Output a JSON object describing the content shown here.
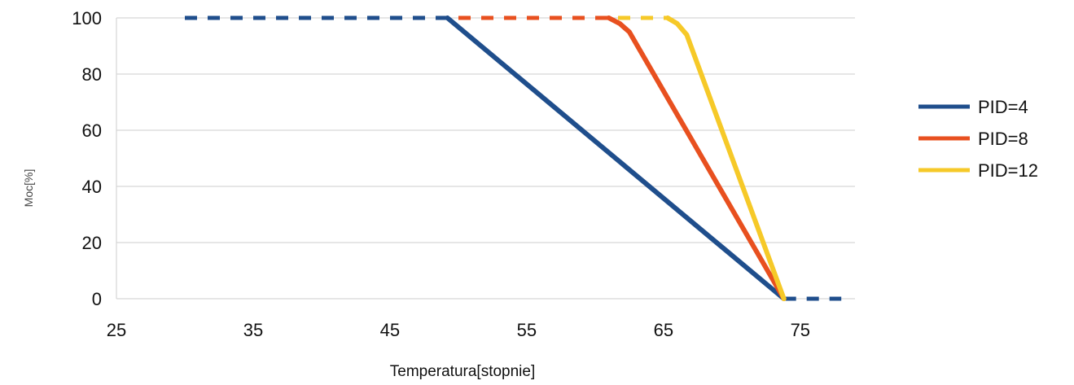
{
  "chart_data": {
    "type": "line",
    "title": "",
    "xlabel": "Temperatura[stopnie]",
    "ylabel": "Moc[%]",
    "xlim": [
      25,
      79
    ],
    "ylim": [
      0,
      100
    ],
    "xticks": [
      25,
      35,
      45,
      55,
      65,
      75
    ],
    "yticks": [
      0,
      20,
      40,
      60,
      80,
      100
    ],
    "grid": "horizontal",
    "legend_position": "right",
    "colors": {
      "PID=4": "#1f4e8c",
      "PID=8": "#e8501f",
      "PID=12": "#f6c928",
      "grid": "#d6d6d6"
    },
    "series": [
      {
        "name": "PID=4",
        "color": "#1f4e8c",
        "solid": [
          [
            49.2,
            100
          ],
          [
            73.8,
            0
          ]
        ],
        "dashed": [
          [
            [
              30,
              100
            ],
            [
              49.2,
              100
            ]
          ],
          [
            [
              73.8,
              0
            ],
            [
              78.0,
              0
            ]
          ]
        ]
      },
      {
        "name": "PID=8",
        "color": "#e8501f",
        "solid": [
          [
            61.0,
            100
          ],
          [
            61.8,
            98
          ],
          [
            62.5,
            95
          ],
          [
            73.8,
            0
          ]
        ],
        "dashed": [
          [
            [
              30,
              100
            ],
            [
              61.0,
              100
            ]
          ]
        ]
      },
      {
        "name": "PID=12",
        "color": "#f6c928",
        "solid": [
          [
            65.3,
            100
          ],
          [
            66.0,
            98
          ],
          [
            66.7,
            94
          ],
          [
            73.8,
            0
          ]
        ],
        "dashed": [
          [
            [
              30,
              100
            ],
            [
              65.3,
              100
            ]
          ]
        ]
      }
    ]
  }
}
